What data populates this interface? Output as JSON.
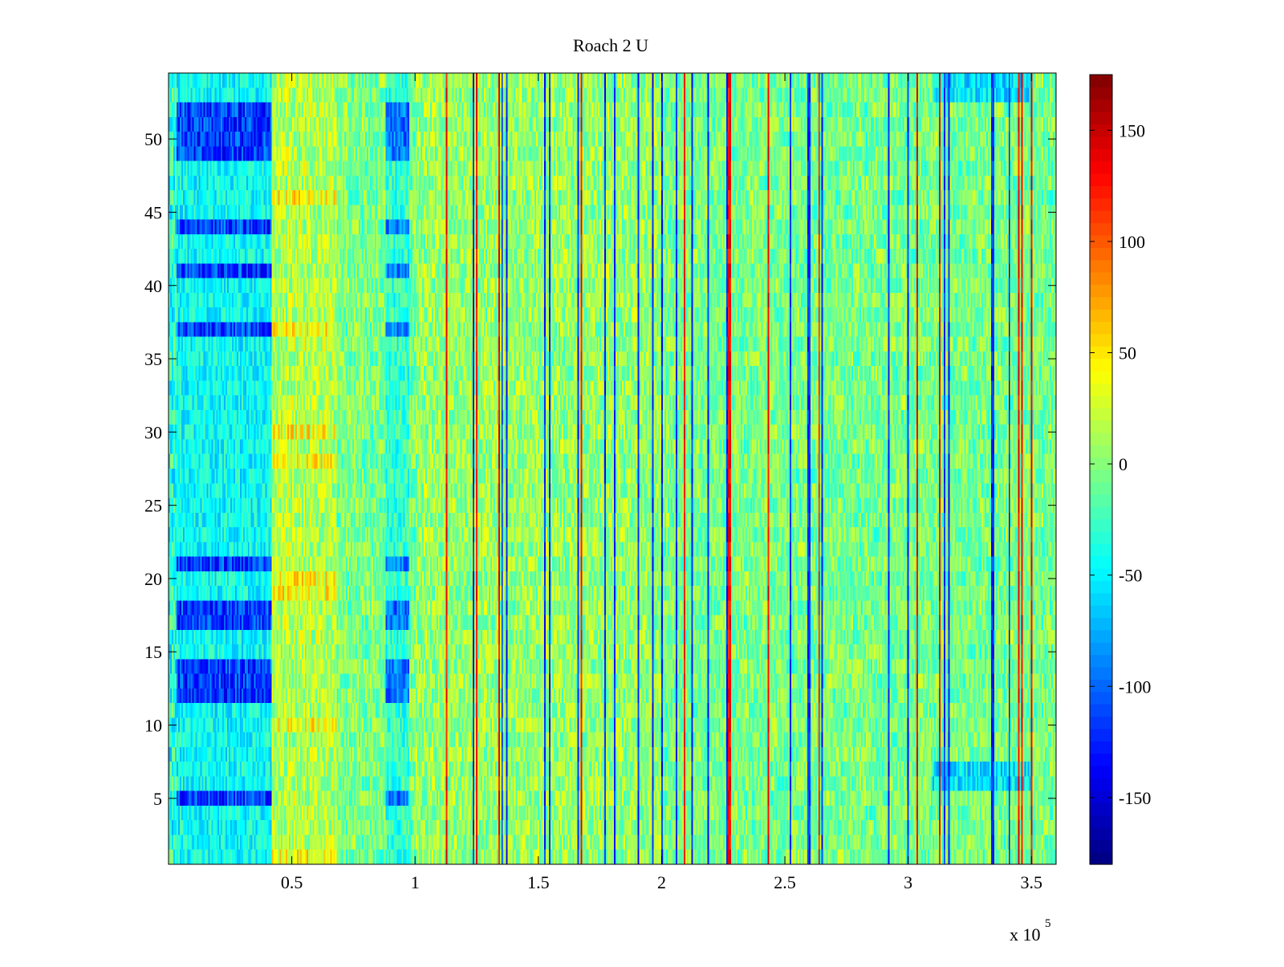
{
  "chart_data": {
    "type": "heatmap",
    "title": "Roach 2 U",
    "xlabel": "",
    "ylabel": "",
    "x_range": [
      0,
      360000
    ],
    "y_range": [
      0.5,
      54.5
    ],
    "rows": 54,
    "x_ticks": [
      50000,
      100000,
      150000,
      200000,
      250000,
      300000,
      350000
    ],
    "x_tick_labels": [
      "0.5",
      "1",
      "1.5",
      "2",
      "2.5",
      "3",
      "3.5"
    ],
    "x_exponent_label": "x 10",
    "x_exponent_power": "5",
    "y_ticks": [
      5,
      10,
      15,
      20,
      25,
      30,
      35,
      40,
      45,
      50
    ],
    "y_tick_labels": [
      "5",
      "10",
      "15",
      "20",
      "25",
      "30",
      "35",
      "40",
      "45",
      "50"
    ],
    "colorbar": {
      "range": [
        -180,
        175
      ],
      "ticks": [
        -150,
        -100,
        -50,
        0,
        50,
        100,
        150
      ],
      "tick_labels": [
        "-150",
        "-100",
        "-50",
        "0",
        "50",
        "100",
        "150"
      ],
      "colormap": "jet"
    },
    "regions": {
      "strong_negative_rows": [
        5,
        12,
        13,
        14,
        17,
        18,
        21,
        37,
        41,
        44,
        49,
        50,
        51,
        52
      ],
      "early_negative_x_range": [
        0,
        42000
      ],
      "secondary_negative_x_range": [
        88000,
        98000
      ],
      "positive_band_x_range": [
        42000,
        68000
      ],
      "typical_value_range": [
        -40,
        40
      ],
      "late_negative_rows": [
        6,
        7,
        53,
        54
      ],
      "late_negative_x_range": [
        310000,
        350000
      ]
    }
  }
}
